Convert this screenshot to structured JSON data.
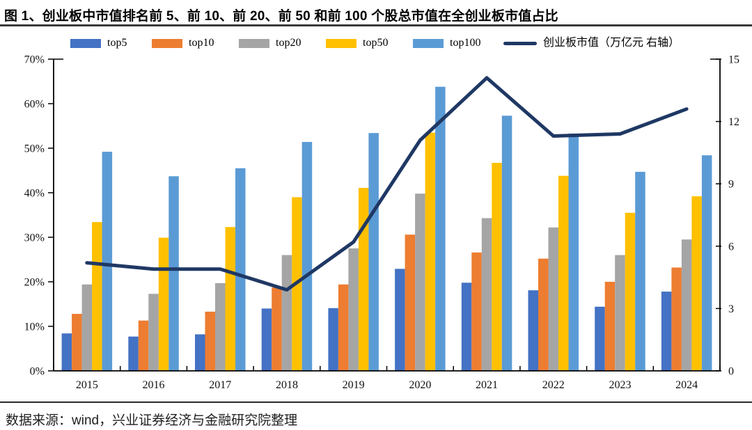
{
  "figure": {
    "title": "图 1、创业板中市值排名前 5、前 10、前 20、前 50 和前 100 个股总市值在全创业板市值占比",
    "source": "数据来源：wind，兴业证券经济与金融研究院整理"
  },
  "chart_data": {
    "type": "bar",
    "subtype": "grouped-bars-with-secondary-axis-line",
    "title": "图 1、创业板中市值排名前 5、前 10、前 20、前 50 和前 100 个股总市值在全创业板市值占比",
    "categories": [
      "2015",
      "2016",
      "2017",
      "2018",
      "2019",
      "2020",
      "2021",
      "2022",
      "2023",
      "2024"
    ],
    "series": [
      {
        "id": "top5",
        "name": "top5",
        "type": "bar",
        "axis": "left",
        "color": "#4472C4",
        "values": [
          8.4,
          7.7,
          8.2,
          14.0,
          14.1,
          22.9,
          19.8,
          18.1,
          14.4,
          17.8
        ]
      },
      {
        "id": "top10",
        "name": "top10",
        "type": "bar",
        "axis": "left",
        "color": "#ED7D31",
        "values": [
          12.8,
          11.3,
          13.3,
          18.7,
          19.4,
          30.6,
          26.6,
          25.2,
          20.0,
          23.2
        ]
      },
      {
        "id": "top20",
        "name": "top20",
        "type": "bar",
        "axis": "left",
        "color": "#A5A5A5",
        "values": [
          19.4,
          17.3,
          19.7,
          26.0,
          27.5,
          39.8,
          34.3,
          32.2,
          26.0,
          29.5
        ]
      },
      {
        "id": "top50",
        "name": "top50",
        "type": "bar",
        "axis": "left",
        "color": "#FFC000",
        "values": [
          33.4,
          29.9,
          32.3,
          39.0,
          41.1,
          53.5,
          46.7,
          43.8,
          35.5,
          39.2
        ]
      },
      {
        "id": "top100",
        "name": "top100",
        "type": "bar",
        "axis": "left",
        "color": "#5B9BD5",
        "values": [
          49.2,
          43.7,
          45.5,
          51.4,
          53.4,
          63.8,
          57.3,
          53.3,
          44.7,
          48.4
        ]
      },
      {
        "id": "market-cap",
        "name": "创业板市值（万亿元 右轴）",
        "type": "line",
        "axis": "right",
        "color": "#1F3864",
        "values": [
          5.2,
          4.9,
          4.9,
          3.9,
          6.2,
          11.1,
          14.1,
          11.3,
          11.4,
          12.6
        ]
      }
    ],
    "left_axis": {
      "min": 0,
      "max": 70,
      "step": 10,
      "unit": "%",
      "ticks": [
        "0%",
        "10%",
        "20%",
        "30%",
        "40%",
        "50%",
        "60%",
        "70%"
      ]
    },
    "right_axis": {
      "min": 0,
      "max": 15,
      "step": 3,
      "ticks": [
        "0",
        "3",
        "6",
        "9",
        "12",
        "15"
      ]
    },
    "legend_position": "top",
    "grid": false
  }
}
